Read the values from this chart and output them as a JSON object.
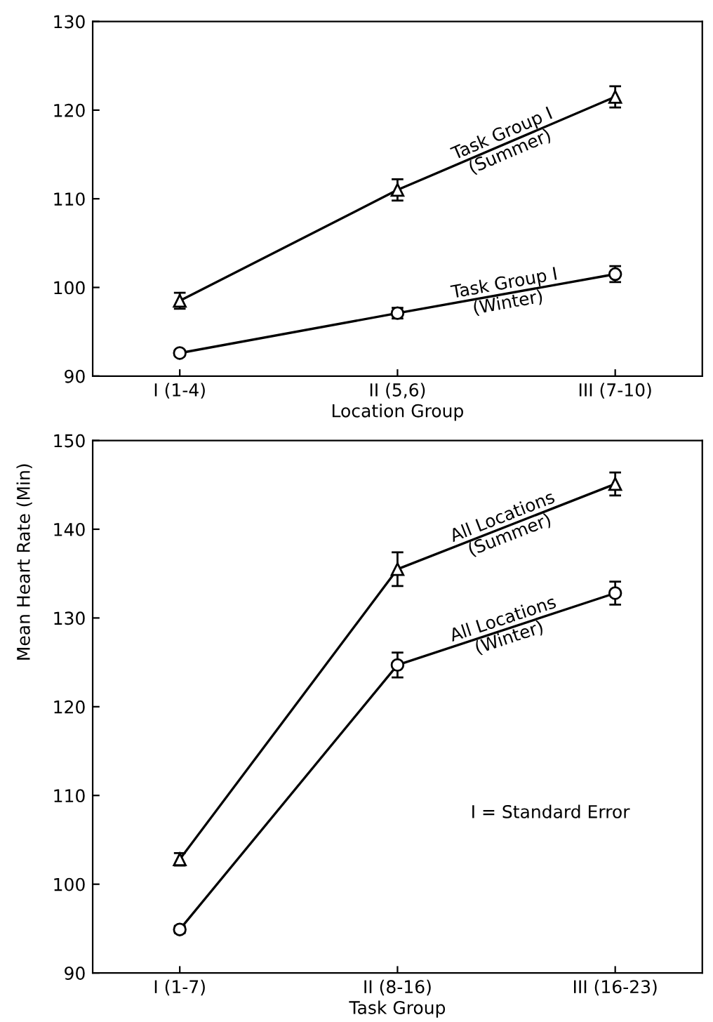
{
  "chart_data": [
    {
      "type": "line",
      "xlabel": "Location Group",
      "categories": [
        "I (1-4)",
        "II (5,6)",
        "III (7-10)"
      ],
      "ylim": [
        90,
        130
      ],
      "yticks": [
        90,
        100,
        110,
        120,
        130
      ],
      "grid": false,
      "legend": false,
      "series": [
        {
          "name": "Task Group I\n(Summer)",
          "color": "#000000",
          "marker": "triangle",
          "values": [
            98.5,
            111.0,
            121.5
          ],
          "errors": [
            0.9,
            1.2,
            1.2
          ]
        },
        {
          "name": "Task Group I\n(Winter)",
          "color": "#000000",
          "marker": "circle",
          "values": [
            92.6,
            97.1,
            101.5
          ],
          "errors": [
            0.3,
            0.6,
            0.9
          ]
        }
      ]
    },
    {
      "type": "line",
      "xlabel": "Task Group",
      "ylabel": "Mean Heart Rate (Min)",
      "categories": [
        "I (1-7)",
        "II (8-16)",
        "III (16-23)"
      ],
      "ylim": [
        90,
        150
      ],
      "yticks": [
        90,
        100,
        110,
        120,
        130,
        140,
        150
      ],
      "grid": false,
      "legend": false,
      "annotations": [
        "I = Standard Error"
      ],
      "series": [
        {
          "name": "All Locations\n(Summer)",
          "color": "#000000",
          "marker": "triangle",
          "values": [
            102.8,
            135.5,
            145.1
          ],
          "errors": [
            0.7,
            1.9,
            1.3
          ]
        },
        {
          "name": "All Locations\n(Winter)",
          "color": "#000000",
          "marker": "circle",
          "values": [
            94.9,
            124.7,
            132.8
          ],
          "errors": [
            0.4,
            1.4,
            1.3
          ]
        }
      ]
    }
  ]
}
